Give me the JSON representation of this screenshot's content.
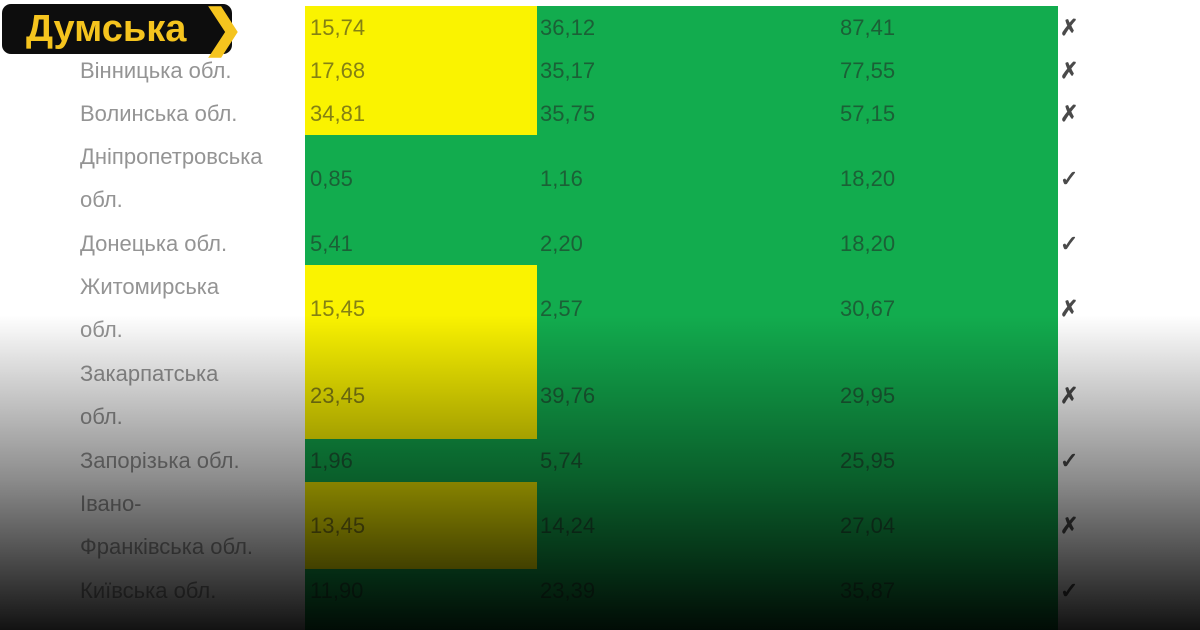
{
  "logo": {
    "text": "Думська",
    "chevron": "❯"
  },
  "colors": {
    "yellow": "#FAF300",
    "green": "#12AC4E",
    "logo_bg": "#0D0D0D",
    "logo_fg": "#F5C41E",
    "label_text": "#949494",
    "value_text": "rgba(35,35,35,0.55)",
    "mark_text": "#4A4A4A"
  },
  "marks": {
    "yes": "✓",
    "no": "✗"
  },
  "chart_data": {
    "type": "table",
    "layout_hints": {
      "col2_highlight_colors": "yellow or green per row",
      "value_columns_background": "green",
      "bottom_fade": "image fades to black at bottom"
    },
    "rows": [
      {
        "region": "",
        "region_lines": [],
        "values": [
          "15,74",
          "36,12",
          "87,41"
        ],
        "status": "no",
        "col2_bg": "yellow"
      },
      {
        "region": "Вінницька обл.",
        "region_lines": [
          "Вінницька обл."
        ],
        "values": [
          "17,68",
          "35,17",
          "77,55"
        ],
        "status": "no",
        "col2_bg": "yellow"
      },
      {
        "region": "Волинська обл.",
        "region_lines": [
          "Волинська обл."
        ],
        "values": [
          "34,81",
          "35,75",
          "57,15"
        ],
        "status": "no",
        "col2_bg": "yellow"
      },
      {
        "region": "Дніпропетровська обл.",
        "region_lines": [
          "Дніпропетровська",
          "обл."
        ],
        "values": [
          "0,85",
          "1,16",
          "18,20"
        ],
        "status": "yes",
        "col2_bg": "green"
      },
      {
        "region": "Донецька обл.",
        "region_lines": [
          "Донецька обл."
        ],
        "values": [
          "5,41",
          "2,20",
          "18,20"
        ],
        "status": "yes",
        "col2_bg": "green"
      },
      {
        "region": "Житомирська обл.",
        "region_lines": [
          "Житомирська",
          "обл."
        ],
        "values": [
          "15,45",
          "2,57",
          "30,67"
        ],
        "status": "no",
        "col2_bg": "yellow"
      },
      {
        "region": "Закарпатська обл.",
        "region_lines": [
          "Закарпатська",
          "обл."
        ],
        "values": [
          "23,45",
          "39,76",
          "29,95"
        ],
        "status": "no",
        "col2_bg": "yellow"
      },
      {
        "region": "Запорізька обл.",
        "region_lines": [
          "Запорізька обл."
        ],
        "values": [
          "1,96",
          "5,74",
          "25,95"
        ],
        "status": "yes",
        "col2_bg": "green"
      },
      {
        "region": "Івано-Франківська обл.",
        "region_lines": [
          "Івано-",
          "Франківська обл."
        ],
        "values": [
          "13,45",
          "14,24",
          "27,04"
        ],
        "status": "no",
        "col2_bg": "yellow"
      },
      {
        "region": "Київська обл.",
        "region_lines": [
          "Київська обл."
        ],
        "values": [
          "11,90",
          "23,39",
          "35,87"
        ],
        "status": "yes",
        "col2_bg": "green"
      }
    ]
  }
}
